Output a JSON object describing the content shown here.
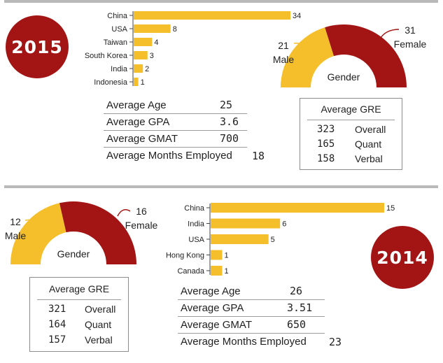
{
  "colors": {
    "gold": "#f4bf2a",
    "red": "#a31515",
    "gray": "#b9b9b9"
  },
  "chart_data": [
    {
      "type": "bar",
      "year": "2015",
      "chart": "students by country",
      "categories": [
        "China",
        "USA",
        "Taiwan",
        "South Korea",
        "India",
        "Indonesia"
      ],
      "values": [
        34,
        8,
        4,
        3,
        2,
        1
      ],
      "value_labels": [
        "34",
        "8",
        "4",
        "3",
        "2",
        "1"
      ]
    },
    {
      "type": "pie",
      "year": "2015",
      "chart": "gender half-donut",
      "center_label": "Gender",
      "slices": [
        {
          "label": "Male",
          "value": 21,
          "value_text": "21",
          "color": "#f4bf2a"
        },
        {
          "label": "Female",
          "value": 31,
          "value_text": "31",
          "color": "#a31515"
        }
      ]
    },
    {
      "type": "bar",
      "year": "2014",
      "chart": "students by country",
      "categories": [
        "China",
        "India",
        "USA",
        "Hong Kong",
        "Canada"
      ],
      "values": [
        15,
        6,
        5,
        1,
        1
      ],
      "value_labels": [
        "15",
        "6",
        "5",
        "1",
        "1"
      ]
    },
    {
      "type": "pie",
      "year": "2014",
      "chart": "gender half-donut",
      "center_label": "Gender",
      "slices": [
        {
          "label": "Male",
          "value": 12,
          "value_text": "12",
          "color": "#f4bf2a"
        },
        {
          "label": "Female",
          "value": 16,
          "value_text": "16",
          "color": "#a31515"
        }
      ]
    }
  ],
  "y2015": {
    "badge": "2015",
    "stats": [
      {
        "label": "Average Age",
        "value": "25"
      },
      {
        "label": "Average GPA",
        "value": "3.6"
      },
      {
        "label": "Average GMAT",
        "value": "700"
      },
      {
        "label": "Average Months Employed",
        "value": "18"
      }
    ],
    "gre": {
      "title": "Average GRE",
      "rows": [
        {
          "value": "323",
          "label": "Overall"
        },
        {
          "value": "165",
          "label": "Quant"
        },
        {
          "value": "158",
          "label": "Verbal"
        }
      ]
    }
  },
  "y2014": {
    "badge": "2014",
    "stats": [
      {
        "label": "Average Age",
        "value": "26"
      },
      {
        "label": "Average GPA",
        "value": "3.51"
      },
      {
        "label": "Average GMAT",
        "value": "650"
      },
      {
        "label": "Average Months Employed",
        "value": "23"
      }
    ],
    "gre": {
      "title": "Average GRE",
      "rows": [
        {
          "value": "321",
          "label": "Overall"
        },
        {
          "value": "164",
          "label": "Quant"
        },
        {
          "value": "157",
          "label": "Verbal"
        }
      ]
    }
  }
}
